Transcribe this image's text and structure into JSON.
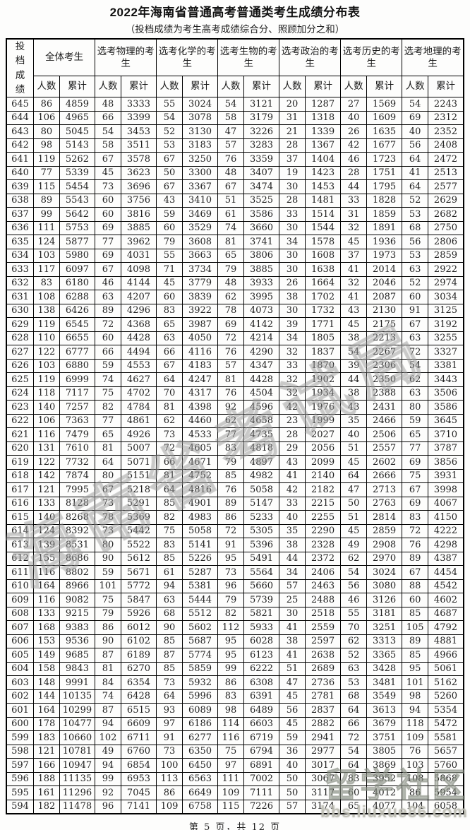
{
  "page": {
    "title": "2022年海南省普通高考普通类考生成绩分布表",
    "subtitle": "（投档成绩为考生高考成绩综合分、照顾加分之和）",
    "footer": "第 5 页，共 12 页"
  },
  "watermarks": {
    "diagonal_text": "海南省考试局",
    "corner_text": "留学社区",
    "corner_site": "bbs.liuxue86.com"
  },
  "table": {
    "score_col_header": "投档成绩",
    "groups": [
      "全体考生",
      "选考物理的考生",
      "选考化学的考生",
      "选考生物的考生",
      "选考政治的考生",
      "选考历史的考生",
      "选考地理的考生"
    ],
    "subcols": [
      "人数",
      "累计"
    ],
    "rows": [
      [
        645,
        86,
        4859,
        48,
        3333,
        55,
        3024,
        54,
        3121,
        20,
        1287,
        27,
        1569,
        54,
        2243
      ],
      [
        644,
        106,
        4965,
        66,
        3399,
        54,
        3078,
        58,
        3179,
        31,
        1318,
        40,
        1609,
        69,
        2312
      ],
      [
        643,
        80,
        5045,
        54,
        3453,
        52,
        3130,
        47,
        3226,
        21,
        1339,
        26,
        1635,
        40,
        2352
      ],
      [
        642,
        98,
        5143,
        58,
        3511,
        53,
        3183,
        57,
        3283,
        28,
        1367,
        42,
        1677,
        56,
        2408
      ],
      [
        641,
        119,
        5262,
        67,
        3578,
        67,
        3250,
        76,
        3359,
        37,
        1404,
        46,
        1723,
        64,
        2472
      ],
      [
        640,
        77,
        5339,
        45,
        3623,
        50,
        3300,
        48,
        3407,
        19,
        1423,
        28,
        1751,
        41,
        2513
      ],
      [
        639,
        115,
        5454,
        73,
        3696,
        67,
        3367,
        67,
        3474,
        30,
        1453,
        44,
        1795,
        64,
        2577
      ],
      [
        638,
        89,
        5543,
        60,
        3756,
        43,
        3410,
        51,
        3525,
        28,
        1481,
        33,
        1828,
        52,
        2629
      ],
      [
        637,
        99,
        5642,
        60,
        3816,
        59,
        3469,
        61,
        3586,
        33,
        1514,
        31,
        1859,
        53,
        2682
      ],
      [
        636,
        111,
        5753,
        69,
        3885,
        60,
        3529,
        74,
        3660,
        30,
        1544,
        32,
        1891,
        68,
        2750
      ],
      [
        635,
        124,
        5877,
        77,
        3962,
        79,
        3608,
        81,
        3741,
        34,
        1578,
        45,
        1936,
        56,
        2806
      ],
      [
        634,
        103,
        5980,
        69,
        4031,
        55,
        3663,
        65,
        3806,
        30,
        1608,
        37,
        1973,
        53,
        2859
      ],
      [
        633,
        117,
        6097,
        67,
        4098,
        71,
        3734,
        79,
        3885,
        30,
        1638,
        41,
        2014,
        63,
        2922
      ],
      [
        632,
        83,
        6180,
        46,
        4144,
        45,
        3779,
        48,
        3933,
        26,
        1664,
        32,
        2046,
        52,
        2974
      ],
      [
        631,
        108,
        6288,
        63,
        4207,
        60,
        3839,
        62,
        3995,
        38,
        1702,
        41,
        2087,
        60,
        3034
      ],
      [
        630,
        138,
        6426,
        89,
        4296,
        83,
        3922,
        78,
        4073,
        30,
        1732,
        43,
        2130,
        91,
        3125
      ],
      [
        629,
        119,
        6545,
        72,
        4368,
        65,
        3987,
        69,
        4142,
        39,
        1771,
        45,
        2175,
        67,
        3192
      ],
      [
        628,
        110,
        6655,
        60,
        4428,
        63,
        4050,
        72,
        4214,
        34,
        1805,
        38,
        2213,
        63,
        3255
      ],
      [
        627,
        122,
        6777,
        66,
        4494,
        66,
        4116,
        76,
        4290,
        32,
        1837,
        54,
        2267,
        72,
        3327
      ],
      [
        626,
        103,
        6880,
        59,
        4553,
        67,
        4183,
        57,
        4347,
        33,
        1870,
        39,
        2306,
        54,
        3381
      ],
      [
        625,
        119,
        6999,
        74,
        4627,
        64,
        4247,
        81,
        4428,
        32,
        1902,
        44,
        2350,
        62,
        3443
      ],
      [
        624,
        118,
        7117,
        75,
        4702,
        70,
        4317,
        76,
        4504,
        32,
        1934,
        38,
        2388,
        63,
        3506
      ],
      [
        623,
        140,
        7257,
        82,
        4784,
        81,
        4398,
        92,
        4596,
        42,
        1976,
        43,
        2431,
        80,
        3586
      ],
      [
        622,
        106,
        7363,
        77,
        4861,
        62,
        4460,
        62,
        4658,
        23,
        1999,
        35,
        2466,
        59,
        3645
      ],
      [
        621,
        116,
        7479,
        65,
        4926,
        73,
        4533,
        77,
        4735,
        28,
        2027,
        40,
        2506,
        65,
        3710
      ],
      [
        620,
        131,
        7610,
        81,
        5007,
        72,
        4605,
        83,
        4818,
        29,
        2056,
        51,
        2557,
        77,
        3787
      ],
      [
        619,
        122,
        7732,
        64,
        5071,
        66,
        4671,
        79,
        4897,
        43,
        2099,
        45,
        2602,
        69,
        3856
      ],
      [
        618,
        142,
        7874,
        80,
        5151,
        81,
        4752,
        85,
        4982,
        41,
        2140,
        64,
        2666,
        75,
        3931
      ],
      [
        617,
        121,
        7995,
        67,
        5218,
        64,
        4816,
        76,
        5058,
        42,
        2182,
        47,
        2713,
        67,
        3998
      ],
      [
        616,
        133,
        8128,
        73,
        5291,
        85,
        4901,
        89,
        5147,
        33,
        2215,
        50,
        2763,
        69,
        4067
      ],
      [
        615,
        140,
        8268,
        78,
        5369,
        82,
        4983,
        86,
        5233,
        40,
        2255,
        51,
        2814,
        83,
        4150
      ],
      [
        614,
        124,
        8392,
        73,
        5442,
        75,
        5058,
        72,
        5305,
        35,
        2290,
        45,
        2859,
        72,
        4222
      ],
      [
        613,
        139,
        8531,
        80,
        5522,
        83,
        5141,
        91,
        5396,
        38,
        2328,
        49,
        2908,
        76,
        4298
      ],
      [
        612,
        155,
        8686,
        90,
        5612,
        85,
        5226,
        95,
        5491,
        44,
        2372,
        62,
        2970,
        89,
        4387
      ],
      [
        611,
        116,
        8802,
        59,
        5671,
        61,
        5287,
        73,
        5564,
        34,
        2406,
        54,
        3024,
        67,
        4454
      ],
      [
        610,
        164,
        8966,
        101,
        5772,
        94,
        5381,
        96,
        5660,
        57,
        2463,
        56,
        3080,
        88,
        4542
      ],
      [
        609,
        116,
        9082,
        75,
        5847,
        63,
        5444,
        79,
        5739,
        25,
        2488,
        46,
        3126,
        60,
        4602
      ],
      [
        608,
        133,
        9215,
        79,
        5926,
        68,
        5512,
        82,
        5821,
        30,
        2518,
        55,
        3181,
        85,
        4687
      ],
      [
        607,
        168,
        9383,
        86,
        6012,
        90,
        5602,
        112,
        5933,
        41,
        2559,
        70,
        3251,
        105,
        4792
      ],
      [
        606,
        153,
        9536,
        90,
        6102,
        85,
        5687,
        95,
        6028,
        38,
        2597,
        62,
        3313,
        89,
        4881
      ],
      [
        605,
        149,
        9685,
        87,
        6189,
        87,
        5774,
        95,
        6123,
        41,
        2638,
        52,
        3365,
        85,
        4966
      ],
      [
        604,
        158,
        9843,
        81,
        6270,
        85,
        5859,
        99,
        6222,
        51,
        2689,
        63,
        3428,
        95,
        5061
      ],
      [
        603,
        148,
        9991,
        84,
        6354,
        73,
        5932,
        86,
        6308,
        47,
        2736,
        53,
        3481,
        101,
        5162
      ],
      [
        602,
        144,
        10135,
        74,
        6428,
        64,
        5996,
        83,
        6391,
        45,
        2781,
        68,
        3549,
        98,
        5260
      ],
      [
        601,
        164,
        10299,
        87,
        6515,
        93,
        6089,
        98,
        6489,
        56,
        2837,
        64,
        3613,
        94,
        5354
      ],
      [
        600,
        178,
        10477,
        94,
        6609,
        97,
        6186,
        114,
        6603,
        45,
        2882,
        66,
        3679,
        118,
        5472
      ],
      [
        599,
        183,
        10660,
        102,
        6711,
        91,
        6277,
        116,
        6719,
        59,
        2941,
        72,
        3751,
        109,
        5581
      ],
      [
        598,
        121,
        10781,
        49,
        6760,
        73,
        6350,
        75,
        6794,
        36,
        2977,
        54,
        3805,
        76,
        5657
      ],
      [
        597,
        166,
        10947,
        94,
        6854,
        100,
        6450,
        97,
        6891,
        40,
        3017,
        64,
        3869,
        103,
        5760
      ],
      [
        596,
        188,
        11135,
        99,
        6953,
        113,
        6563,
        111,
        7002,
        50,
        3067,
        83,
        3952,
        108,
        5868
      ],
      [
        595,
        161,
        11296,
        92,
        7045,
        86,
        6649,
        109,
        7111,
        50,
        3117,
        60,
        4012,
        86,
        5954
      ],
      [
        594,
        182,
        11478,
        96,
        7141,
        109,
        6758,
        115,
        7226,
        57,
        3174,
        65,
        4077,
        104,
        6058
      ]
    ]
  }
}
